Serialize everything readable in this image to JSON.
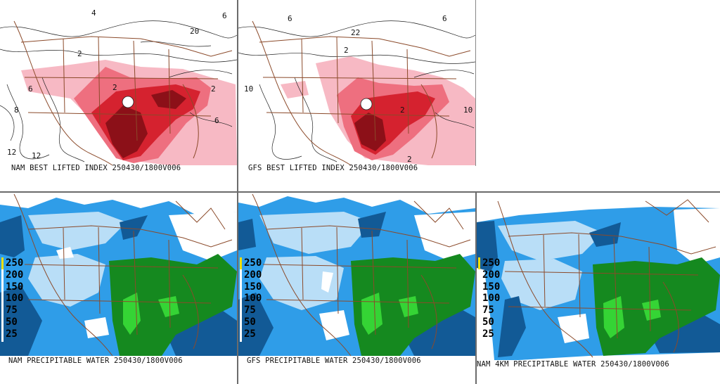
{
  "panels": {
    "nam_li": {
      "title": "NAM BEST LIFTED INDEX 250430/1800V006"
    },
    "gfs_li": {
      "title": "GFS BEST LIFTED INDEX 250430/1800V006"
    },
    "nam_pw": {
      "title": "NAM PRECIPITABLE WATER 250430/1800V006"
    },
    "gfs_pw": {
      "title": "GFS PRECIPITABLE WATER 250430/1800V006"
    },
    "nam4km_pw": {
      "title": "NAM 4KM PRECIPITABLE WATER 250430/1800V006"
    }
  },
  "pw_legend": {
    "values": [
      "250",
      "200",
      "150",
      "100",
      "75",
      "50",
      "25"
    ]
  },
  "colors": {
    "li_light": "#f7b9c4",
    "li_mid": "#ee6f7f",
    "li_dark": "#d5222f",
    "li_darkest": "#8c1018",
    "pw_light": "#b9def7",
    "pw_mid": "#2f9de8",
    "pw_dark": "#125a96",
    "pw_green": "#15891f",
    "pw_lightgreen": "#35d435",
    "borders": "#8b4a2a",
    "contours": "#222222"
  }
}
